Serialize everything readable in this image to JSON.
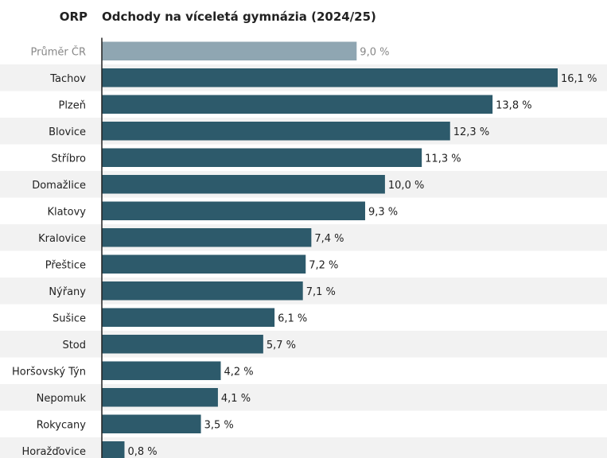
{
  "header": {
    "column_label": "ORP",
    "title": "Odchody na víceletá gymnázia (2024/25)"
  },
  "colors": {
    "bar": "#2d5a6b",
    "reference_bar": "#8fa6b2",
    "reference_text": "#888888",
    "row_stripe": "#f2f2f2",
    "text": "#222222"
  },
  "chart_data": {
    "type": "bar",
    "orientation": "horizontal",
    "title": "Odchody na víceletá gymnázia (2024/25)",
    "category_header": "ORP",
    "unit": "%",
    "xlim": [
      0,
      16.1
    ],
    "grid": false,
    "categories": [
      "Průměr ČR",
      "Tachov",
      "Plzeň",
      "Blovice",
      "Stříbro",
      "Domažlice",
      "Klatovy",
      "Kralovice",
      "Přeštice",
      "Nýřany",
      "Sušice",
      "Stod",
      "Horšovský Týn",
      "Nepomuk",
      "Rokycany",
      "Horažďovice"
    ],
    "values": [
      9.0,
      16.1,
      13.8,
      12.3,
      11.3,
      10.0,
      9.3,
      7.4,
      7.2,
      7.1,
      6.1,
      5.7,
      4.2,
      4.1,
      3.5,
      0.8
    ],
    "value_labels": [
      "9,0 %",
      "16,1 %",
      "13,8 %",
      "12,3 %",
      "11,3 %",
      "10,0 %",
      "9,3 %",
      "7,4 %",
      "7,2 %",
      "7,1 %",
      "6,1 %",
      "5,7 %",
      "4,2 %",
      "4,1 %",
      "3,5 %",
      "0,8 %"
    ],
    "reference_category": "Průměr ČR"
  }
}
